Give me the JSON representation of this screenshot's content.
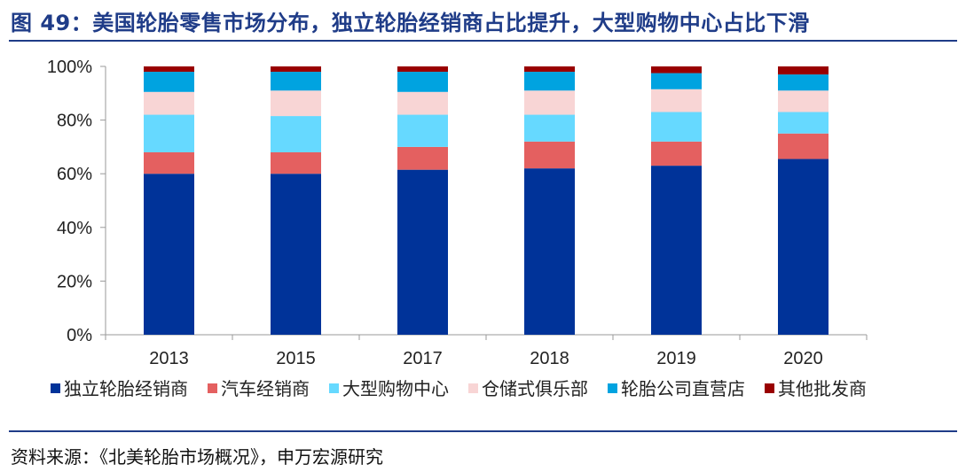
{
  "title": "图 49：美国轮胎零售市场分布，独立轮胎经销商占比提升，大型购物中心占比下滑",
  "source": "资料来源：《北美轮胎市场概况》，申万宏源研究",
  "colors": {
    "title": "#1f3c88",
    "axis": "#9a9a9a"
  },
  "chart_data": {
    "type": "bar",
    "stacked": true,
    "percent": true,
    "categories": [
      "2013",
      "2015",
      "2017",
      "2018",
      "2019",
      "2020"
    ],
    "ylim": [
      0,
      100
    ],
    "yticks": [
      "0%",
      "20%",
      "40%",
      "60%",
      "80%",
      "100%"
    ],
    "legend_position": "bottom",
    "series": [
      {
        "name": "独立轮胎经销商",
        "color": "#003399",
        "values": [
          60,
          60,
          61.5,
          62,
          63,
          65.5
        ]
      },
      {
        "name": "汽车经销商",
        "color": "#e46060",
        "values": [
          8,
          8,
          8.5,
          10,
          9,
          9.5
        ]
      },
      {
        "name": "大型购物中心",
        "color": "#66d9ff",
        "values": [
          14,
          13.5,
          12,
          10,
          11,
          8
        ]
      },
      {
        "name": "仓储式俱乐部",
        "color": "#f8d5d5",
        "values": [
          8.5,
          9.5,
          8.5,
          9,
          8.5,
          8
        ]
      },
      {
        "name": "轮胎公司直营店",
        "color": "#00a3e0",
        "values": [
          7.5,
          7,
          7.5,
          7,
          6,
          6
        ]
      },
      {
        "name": "其他批发商",
        "color": "#990000",
        "values": [
          2,
          2,
          2,
          2,
          2.5,
          3
        ]
      }
    ]
  }
}
